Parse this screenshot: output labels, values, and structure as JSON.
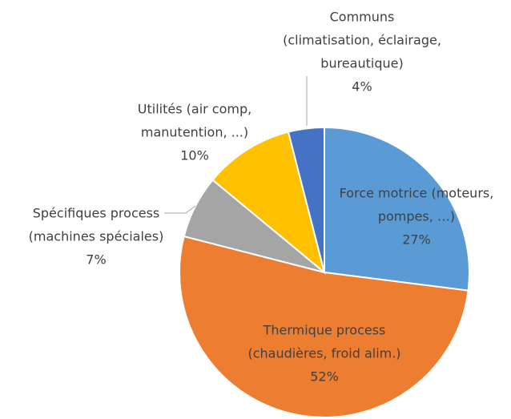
{
  "chart_data": {
    "type": "pie",
    "categories": [
      [
        "Force motrice (moteurs,",
        "pompes, …)"
      ],
      [
        "Thermique process",
        "(chaudières, froid alim.)"
      ],
      [
        "Spécifiques process",
        "(machines spéciales)"
      ],
      [
        "Utilités (air comp,",
        "manutention, ...)"
      ],
      [
        "Communs",
        "(climatisation, éclairage,",
        "bureautique)"
      ]
    ],
    "values": [
      27,
      52,
      7,
      10,
      4
    ],
    "value_labels": [
      "27%",
      "52%",
      "7%",
      "10%",
      "4%"
    ],
    "colors": [
      "#5b9bd5",
      "#ed7d31",
      "#a5a5a5",
      "#ffc000",
      "#4472c4"
    ]
  }
}
